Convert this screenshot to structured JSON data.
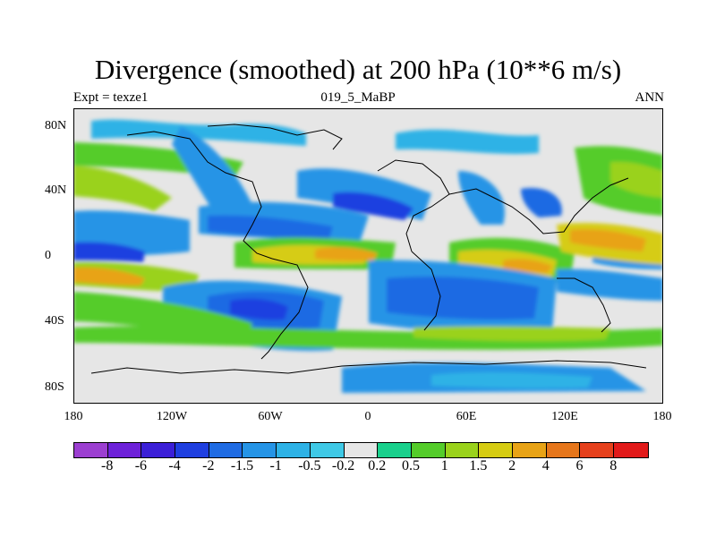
{
  "title": "Divergence (smoothed) at 200 hPa (10**6 m/s)",
  "subtitle_left": "Expt = texze1",
  "subtitle_center": "019_5_MaBP",
  "subtitle_right": "ANN",
  "y_ticks": [
    "80N",
    "40N",
    "0",
    "40S",
    "80S"
  ],
  "x_ticks": [
    "180",
    "120W",
    "60W",
    "0",
    "60E",
    "120E",
    "180"
  ],
  "colorbar": {
    "labels": [
      "-8",
      "-6",
      "-4",
      "-2",
      "-1.5",
      "-1",
      "-0.5",
      "-0.2",
      "0.2",
      "0.5",
      "1",
      "1.5",
      "2",
      "4",
      "6",
      "8"
    ],
    "colors": [
      "#9c3fd1",
      "#6d21d9",
      "#3b1fd7",
      "#1f3fe0",
      "#1f6be3",
      "#2594e6",
      "#2db2e6",
      "#3fc9e6",
      "#e6e6e6",
      "#19d08c",
      "#54cc2a",
      "#9ad21b",
      "#d6cc12",
      "#e8a316",
      "#e6761b",
      "#e6401c",
      "#e21a1a"
    ]
  },
  "colors": {
    "background": "#e6e6e6",
    "coast": "#000000"
  }
}
